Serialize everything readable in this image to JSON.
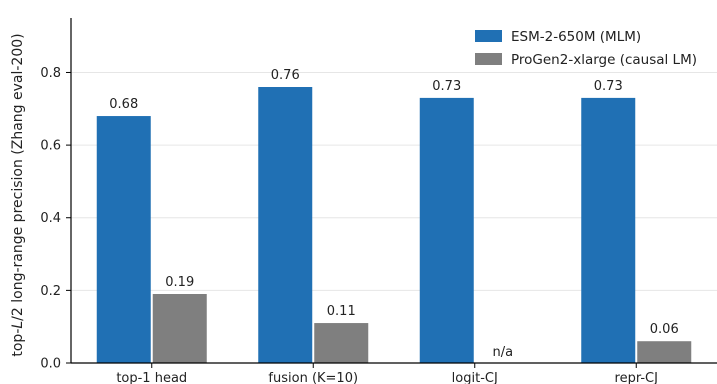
{
  "chart_data": {
    "type": "bar",
    "categories": [
      "top-1 head",
      "fusion (K=10)",
      "logit-CJ",
      "repr-CJ"
    ],
    "series": [
      {
        "name": "ESM-2-650M (MLM)",
        "color": "#2070b4",
        "values": [
          0.68,
          0.76,
          0.73,
          0.73
        ],
        "labels": [
          "0.68",
          "0.76",
          "0.73",
          "0.73"
        ]
      },
      {
        "name": "ProGen2-xlarge (causal LM)",
        "color": "#7f7f7f",
        "values": [
          0.19,
          0.11,
          null,
          0.06
        ],
        "labels": [
          "0.19",
          "0.11",
          "n/a",
          "0.06"
        ]
      }
    ],
    "ylabel": "top-L/2 long-range precision (Zhang eval-200)",
    "ylabel_parts": {
      "pre": "top-",
      "italic": "L",
      "post": "/2 long-range precision (Zhang eval-200)"
    },
    "xlabel": "",
    "ylim": [
      0,
      0.95
    ],
    "yticks": [
      0.0,
      0.2,
      0.4,
      0.6,
      0.8
    ],
    "ytick_labels": [
      "0.0",
      "0.2",
      "0.4",
      "0.6",
      "0.8"
    ],
    "grid": "horizontal",
    "legend_position": "top-right"
  }
}
